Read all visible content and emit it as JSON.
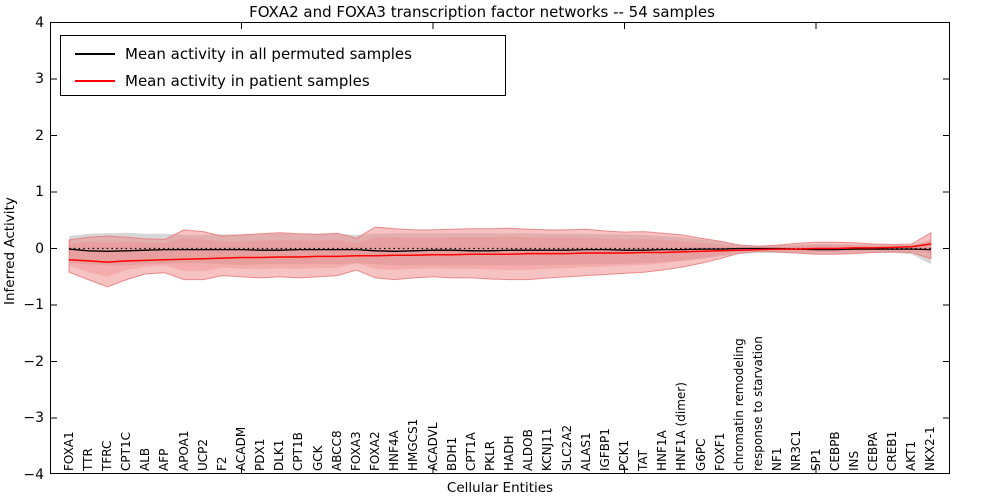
{
  "figure": {
    "title": "FOXA2 and FOXA3 transcription factor networks -- 54 samples",
    "xlabel": "Cellular Entities",
    "ylabel": "Inferred Activity"
  },
  "legend": {
    "items": [
      {
        "label": "Mean activity in all permuted samples",
        "color": "#000000"
      },
      {
        "label": "Mean activity in patient samples",
        "color": "#ff0000"
      }
    ]
  },
  "axis": {
    "y_tick_labels": [
      "4",
      "3",
      "2",
      "1",
      "0",
      "−1",
      "−2",
      "−3",
      "−4"
    ],
    "y_tick_values": [
      4,
      3,
      2,
      1,
      0,
      -1,
      -2,
      -3,
      -4
    ],
    "x_major_tick_indices": [
      9,
      19,
      29,
      39
    ]
  },
  "chart_data": {
    "type": "line",
    "title": "FOXA2 and FOXA3 transcription factor networks -- 54 samples",
    "xlabel": "Cellular Entities",
    "ylabel": "Inferred Activity",
    "ylim": [
      -4,
      4
    ],
    "grid": false,
    "legend_position": "upper left",
    "zero_line": 0,
    "categories": [
      "FOXA1",
      "TTR",
      "TFRC",
      "CPT1C",
      "ALB",
      "AFP",
      "APOA1",
      "UCP2",
      "F2",
      "ACADM",
      "PDX1",
      "DLK1",
      "CPT1B",
      "GCK",
      "ABCC8",
      "FOXA3",
      "FOXA2",
      "HNF4A",
      "HMGCS1",
      "ACADVL",
      "BDH1",
      "CPT1A",
      "PKLR",
      "HADH",
      "ALDOB",
      "KCNJ11",
      "SLC2A2",
      "ALAS1",
      "IGFBP1",
      "PCK1",
      "TAT",
      "HNF1A",
      "HNF1A (dimer)",
      "G6PC",
      "FOXF1",
      "chromatin remodeling",
      "response to starvation",
      "NF1",
      "NR3C1",
      "SP1",
      "CEBPB",
      "INS",
      "CEBPA",
      "CREB1",
      "AKT1",
      "NKX2-1"
    ],
    "series": [
      {
        "name": "Mean activity in all permuted samples",
        "color": "#000000",
        "style": "solid",
        "values": [
          -0.01,
          -0.04,
          -0.05,
          -0.04,
          -0.03,
          -0.02,
          -0.02,
          -0.02,
          -0.02,
          -0.02,
          -0.03,
          -0.03,
          -0.02,
          -0.02,
          -0.02,
          -0.02,
          -0.04,
          -0.05,
          -0.04,
          -0.03,
          -0.03,
          -0.04,
          -0.04,
          -0.03,
          -0.03,
          -0.03,
          -0.03,
          -0.02,
          -0.02,
          -0.03,
          -0.03,
          -0.02,
          -0.02,
          -0.01,
          -0.01,
          0,
          0,
          0,
          -0.01,
          -0.02,
          -0.02,
          -0.01,
          -0.01,
          -0.01,
          -0.01,
          -0.02
        ]
      },
      {
        "name": "Mean activity in patient samples",
        "color": "#ff0000",
        "style": "solid",
        "values": [
          -0.2,
          -0.22,
          -0.24,
          -0.22,
          -0.21,
          -0.2,
          -0.19,
          -0.18,
          -0.17,
          -0.16,
          -0.16,
          -0.15,
          -0.15,
          -0.14,
          -0.14,
          -0.13,
          -0.13,
          -0.12,
          -0.12,
          -0.11,
          -0.11,
          -0.1,
          -0.1,
          -0.1,
          -0.09,
          -0.09,
          -0.09,
          -0.08,
          -0.08,
          -0.08,
          -0.07,
          -0.07,
          -0.06,
          -0.05,
          -0.04,
          -0.03,
          -0.02,
          -0.01,
          -0.01,
          0,
          0,
          0.01,
          0.01,
          0.02,
          0.03,
          0.08
        ]
      }
    ],
    "bands": [
      {
        "name": "permuted-samples-spread",
        "color": "#787878",
        "opacity": 0.3,
        "high": [
          0.22,
          0.26,
          0.27,
          0.28,
          0.26,
          0.26,
          0.24,
          0.24,
          0.25,
          0.25,
          0.26,
          0.26,
          0.26,
          0.26,
          0.26,
          0.24,
          0.26,
          0.27,
          0.27,
          0.27,
          0.27,
          0.27,
          0.27,
          0.27,
          0.27,
          0.26,
          0.26,
          0.26,
          0.25,
          0.25,
          0.24,
          0.22,
          0.2,
          0.16,
          0.12,
          0.07,
          0.05,
          0.06,
          0.07,
          0.08,
          0.08,
          0.07,
          0.07,
          0.06,
          0.07,
          0.12
        ],
        "low": [
          -0.25,
          -0.28,
          -0.3,
          -0.3,
          -0.28,
          -0.27,
          -0.26,
          -0.26,
          -0.28,
          -0.3,
          -0.28,
          -0.28,
          -0.28,
          -0.28,
          -0.28,
          -0.26,
          -0.28,
          -0.3,
          -0.3,
          -0.3,
          -0.3,
          -0.3,
          -0.3,
          -0.3,
          -0.3,
          -0.29,
          -0.29,
          -0.28,
          -0.28,
          -0.27,
          -0.26,
          -0.24,
          -0.22,
          -0.18,
          -0.14,
          -0.1,
          -0.08,
          -0.08,
          -0.09,
          -0.09,
          -0.09,
          -0.08,
          -0.08,
          -0.08,
          -0.1,
          -0.28
        ]
      },
      {
        "name": "patient-samples-outer-spread",
        "color": "#f08585",
        "opacity": 0.5,
        "high": [
          0.15,
          0.2,
          0.22,
          0.2,
          0.17,
          0.16,
          0.33,
          0.3,
          0.22,
          0.24,
          0.26,
          0.28,
          0.26,
          0.25,
          0.27,
          0.18,
          0.38,
          0.35,
          0.33,
          0.33,
          0.34,
          0.35,
          0.35,
          0.36,
          0.34,
          0.33,
          0.33,
          0.34,
          0.31,
          0.29,
          0.3,
          0.27,
          0.24,
          0.18,
          0.13,
          0.06,
          0.04,
          0.06,
          0.09,
          0.11,
          0.11,
          0.1,
          0.08,
          0.07,
          0.08,
          0.28
        ],
        "low": [
          -0.42,
          -0.55,
          -0.68,
          -0.55,
          -0.45,
          -0.43,
          -0.55,
          -0.55,
          -0.48,
          -0.5,
          -0.52,
          -0.5,
          -0.52,
          -0.5,
          -0.48,
          -0.38,
          -0.52,
          -0.55,
          -0.52,
          -0.5,
          -0.52,
          -0.52,
          -0.54,
          -0.55,
          -0.55,
          -0.52,
          -0.5,
          -0.48,
          -0.46,
          -0.44,
          -0.42,
          -0.38,
          -0.33,
          -0.26,
          -0.18,
          -0.08,
          -0.05,
          -0.06,
          -0.08,
          -0.1,
          -0.1,
          -0.09,
          -0.07,
          -0.06,
          -0.07,
          -0.18
        ]
      },
      {
        "name": "patient-samples-inner-spread",
        "color": "#f08585",
        "opacity": 0.35,
        "high": [
          0.08,
          0.12,
          0.1,
          0.12,
          0.1,
          0.1,
          0.18,
          0.16,
          0.12,
          0.13,
          0.14,
          0.15,
          0.14,
          0.14,
          0.15,
          0.1,
          0.2,
          0.2,
          0.19,
          0.19,
          0.2,
          0.2,
          0.2,
          0.21,
          0.2,
          0.19,
          0.19,
          0.19,
          0.17,
          0.16,
          0.17,
          0.15,
          0.13,
          0.1,
          0.07,
          0.03,
          0.02,
          0.03,
          0.05,
          0.06,
          0.06,
          0.06,
          0.05,
          0.04,
          0.05,
          0.16
        ],
        "low": [
          -0.3,
          -0.42,
          -0.5,
          -0.38,
          -0.32,
          -0.3,
          -0.4,
          -0.4,
          -0.34,
          -0.36,
          -0.36,
          -0.35,
          -0.36,
          -0.35,
          -0.34,
          -0.26,
          -0.36,
          -0.38,
          -0.36,
          -0.35,
          -0.36,
          -0.36,
          -0.37,
          -0.38,
          -0.38,
          -0.36,
          -0.35,
          -0.33,
          -0.32,
          -0.3,
          -0.29,
          -0.26,
          -0.22,
          -0.17,
          -0.12,
          -0.05,
          -0.03,
          -0.04,
          -0.05,
          -0.06,
          -0.06,
          -0.05,
          -0.04,
          -0.04,
          -0.04,
          -0.09
        ]
      }
    ]
  }
}
